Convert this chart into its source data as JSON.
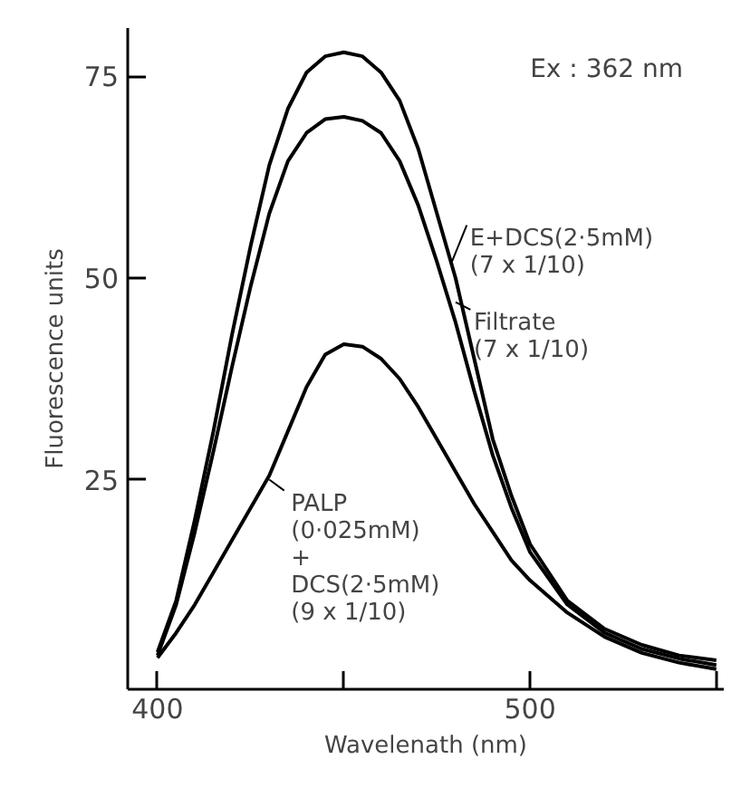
{
  "chart_data": {
    "type": "line",
    "xlabel": "Wavelenath (nm)",
    "ylabel": "Fluorescence units",
    "x": [
      400,
      405,
      410,
      415,
      420,
      425,
      430,
      435,
      440,
      445,
      450,
      455,
      460,
      465,
      470,
      475,
      480,
      485,
      490,
      495,
      500,
      510,
      520,
      530,
      540,
      550
    ],
    "series": [
      {
        "color": "#000000",
        "values": [
          3.6,
          10,
          20,
          31,
          43,
          54,
          64,
          71,
          75.5,
          77.5,
          78,
          77.5,
          75.5,
          72,
          66,
          58,
          50,
          40,
          30,
          23,
          17,
          10,
          6.5,
          4.5,
          3.2,
          2.6
        ]
      },
      {
        "color": "#000000",
        "values": [
          3.2,
          9.5,
          18.5,
          28.5,
          39,
          49,
          58,
          64.5,
          68,
          69.7,
          70,
          69.5,
          68,
          64.5,
          59,
          52,
          44.5,
          36,
          28,
          21.5,
          16,
          9.5,
          6,
          4,
          2.8,
          2
        ]
      },
      {
        "color": "#000000",
        "values": [
          2.9,
          6,
          9.5,
          13.5,
          17.5,
          21.5,
          25.5,
          31,
          36.5,
          40.5,
          41.8,
          41.5,
          40,
          37.5,
          34,
          30,
          26,
          22,
          18.5,
          15,
          12.5,
          8.5,
          5.5,
          3.5,
          2.3,
          1.5
        ]
      }
    ],
    "xlim": [
      392,
      552
    ],
    "ylim": [
      -1,
      81
    ],
    "xticks": [
      400,
      {
        "value": 450,
        "label": null
      },
      500,
      {
        "value": 550,
        "label": null
      }
    ],
    "yticks": [
      25,
      50,
      75
    ],
    "grid": false,
    "marker": "none",
    "line_style": "solid",
    "annotations": [
      "Ex : 362 nm",
      {
        "text": "E+DCS(2·5mM)\n(7 x 1/10)",
        "x": 479,
        "y": 52
      },
      {
        "text": "Filtrate\n(7 x 1/10)",
        "x": 480,
        "y": 47
      },
      {
        "text": "PALP\n(0·025mM)\n+\nDCS(2·5mM)\n(9 x 1/10)",
        "x": 430,
        "y": 25
      }
    ]
  }
}
